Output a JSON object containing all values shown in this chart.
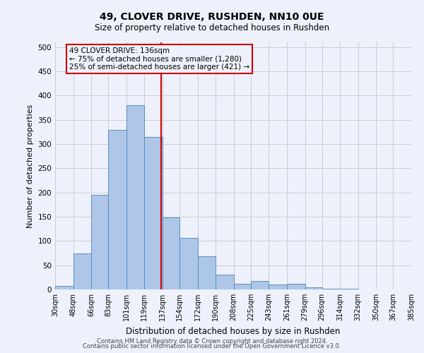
{
  "title1": "49, CLOVER DRIVE, RUSHDEN, NN10 0UE",
  "title2": "Size of property relative to detached houses in Rushden",
  "xlabel": "Distribution of detached houses by size in Rushden",
  "ylabel": "Number of detached properties",
  "footer1": "Contains HM Land Registry data © Crown copyright and database right 2024.",
  "footer2": "Contains public sector information licensed under the Open Government Licence v3.0.",
  "annotation_title": "49 CLOVER DRIVE: 136sqm",
  "annotation_line1": "← 75% of detached houses are smaller (1,280)",
  "annotation_line2": "25% of semi-detached houses are larger (421) →",
  "property_size": 136,
  "bin_labels": [
    "30sqm",
    "48sqm",
    "66sqm",
    "83sqm",
    "101sqm",
    "119sqm",
    "137sqm",
    "154sqm",
    "172sqm",
    "190sqm",
    "208sqm",
    "225sqm",
    "243sqm",
    "261sqm",
    "279sqm",
    "296sqm",
    "314sqm",
    "332sqm",
    "350sqm",
    "367sqm",
    "385sqm"
  ],
  "bin_edges": [
    30,
    48,
    66,
    83,
    101,
    119,
    137,
    154,
    172,
    190,
    208,
    225,
    243,
    261,
    279,
    296,
    314,
    332,
    350,
    367,
    385
  ],
  "bar_values": [
    7,
    75,
    195,
    330,
    380,
    315,
    148,
    107,
    68,
    30,
    12,
    18,
    10,
    12,
    4,
    2,
    1,
    0,
    0,
    0
  ],
  "bar_color": "#aec6e8",
  "bar_edge_color": "#5a8fc0",
  "vline_color": "#cc0000",
  "vline_x": 136,
  "annotation_box_color": "#cc0000",
  "background_color": "#eef1fb",
  "grid_color": "#cccccc",
  "ylim": [
    0,
    510
  ],
  "yticks": [
    0,
    50,
    100,
    150,
    200,
    250,
    300,
    350,
    400,
    450,
    500
  ]
}
